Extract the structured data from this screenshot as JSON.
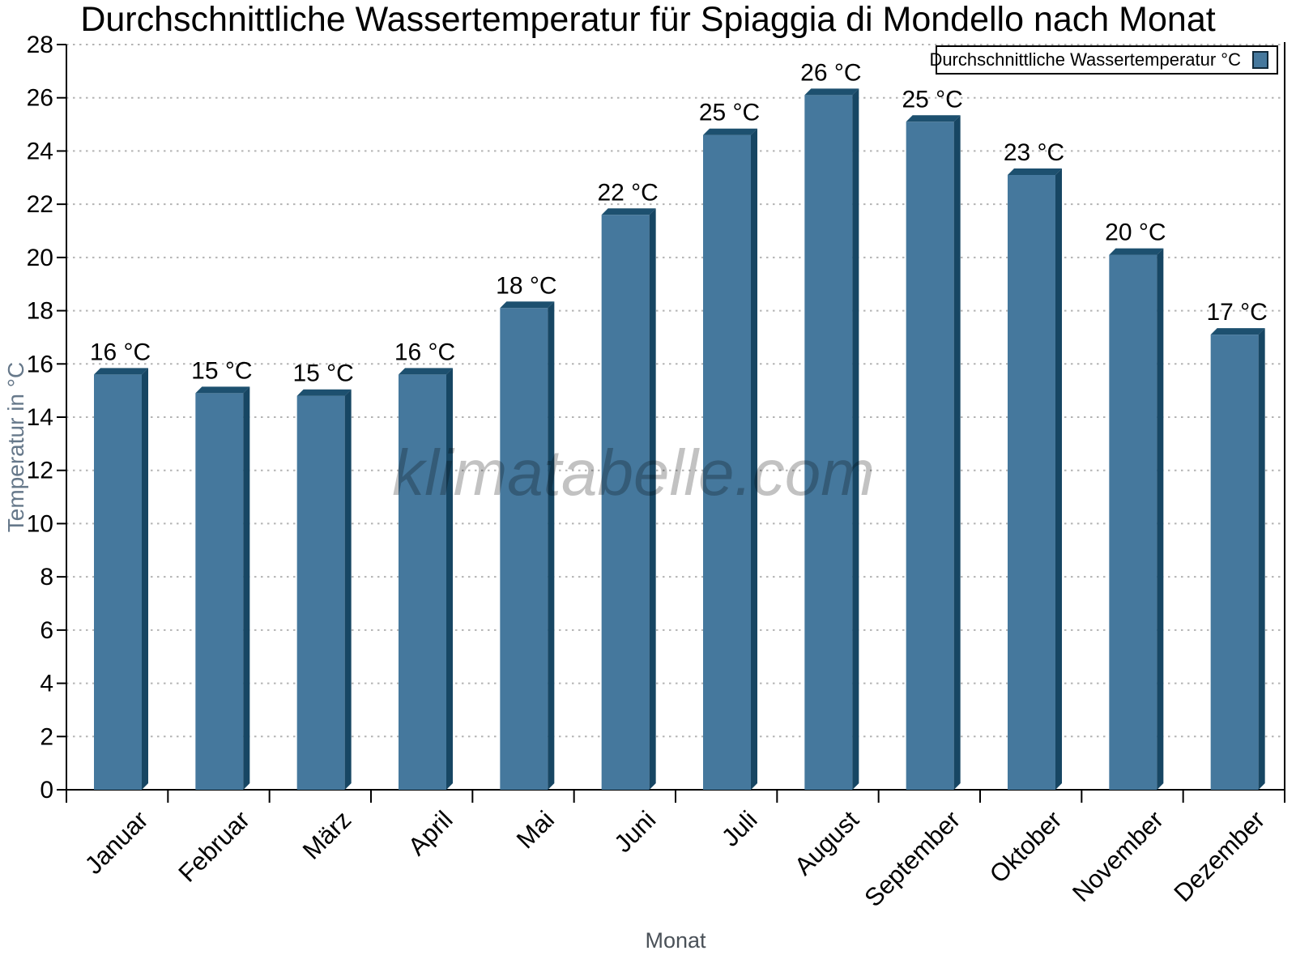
{
  "watermark": {
    "text": "klimatabelle.com"
  },
  "chart_data": {
    "type": "bar",
    "title": "Durchschnittliche Wassertemperatur für Spiaggia di Mondello nach Monat",
    "categories": [
      "Januar",
      "Februar",
      "März",
      "April",
      "Mai",
      "Juni",
      "Juli",
      "August",
      "September",
      "Oktober",
      "November",
      "Dezember"
    ],
    "values": [
      15.6,
      14.9,
      14.8,
      15.6,
      18.1,
      21.6,
      24.6,
      26.1,
      25.1,
      23.1,
      20.1,
      17.1
    ],
    "point_labels": [
      "16 °C",
      "15 °C",
      "15 °C",
      "16 °C",
      "18 °C",
      "22 °C",
      "25 °C",
      "26 °C",
      "25 °C",
      "23 °C",
      "20 °C",
      "17 °C"
    ],
    "xlabel": "Monat",
    "ylabel": "Temperatur in °C",
    "ylim": [
      0,
      28
    ],
    "ytick_step": 2,
    "legend": {
      "label": "Durchschnittliche Wassertemperatur °C",
      "position": "top-right"
    },
    "grid": {
      "horizontal": true,
      "style": "dotted"
    },
    "colors": {
      "bar_face": "#45789d",
      "bar_top": "#1d506f",
      "bar_side": "#174663",
      "grid_line": "#b3b3b3",
      "axis_line": "#000000",
      "tick_label": "#000000",
      "value_label": "#000000",
      "y_axis_title": "#66788a",
      "x_axis_title": "#4a5158",
      "watermark": "rgba(0,0,0,0.24)"
    }
  }
}
